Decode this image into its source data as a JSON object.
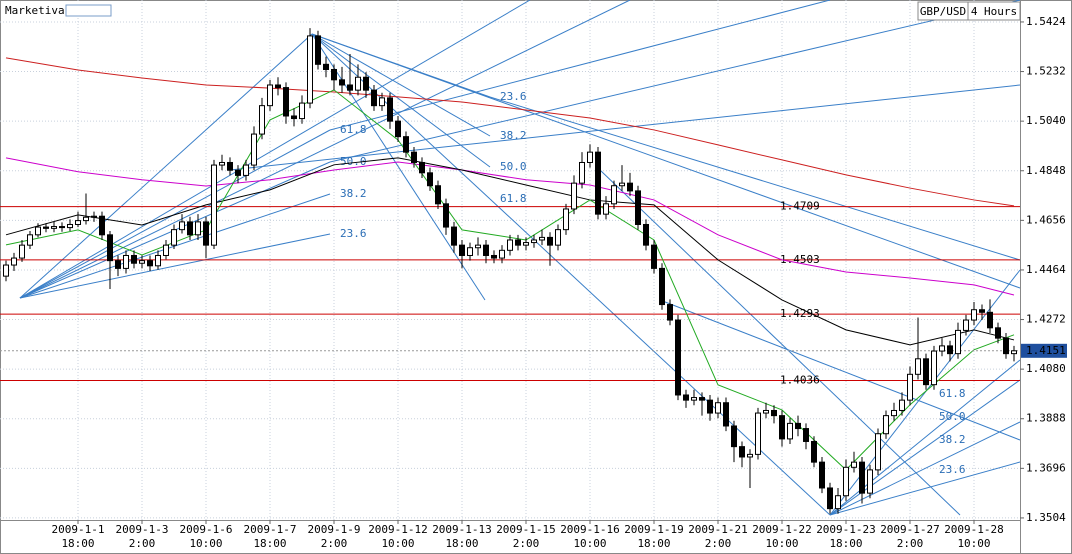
{
  "chart_data": {
    "type": "candlestick",
    "brand": "Marketiva",
    "symbol": "GBP/USD",
    "timeframe": "4 Hours",
    "ylim": [
      1.3496,
      1.5509
    ],
    "yticks": [
      1.5424,
      1.5232,
      {
        "value": 1.504,
        "label": "1.5040"
      },
      1.4848,
      1.4656,
      1.4464,
      1.4272,
      {
        "value": 1.408,
        "label": "1.4080"
      },
      1.3888,
      1.3696,
      1.3504
    ],
    "grid": true,
    "categories": [
      null,
      null,
      null,
      null,
      null,
      null,
      null,
      null,
      null,
      [
        "2009-1-1",
        "18:00"
      ],
      null,
      null,
      null,
      null,
      null,
      null,
      null,
      [
        "2009-1-3",
        "2:00"
      ],
      null,
      null,
      null,
      null,
      null,
      null,
      null,
      [
        "2009-1-6",
        "10:00"
      ],
      null,
      null,
      null,
      null,
      null,
      null,
      null,
      [
        "2009-1-7",
        "18:00"
      ],
      null,
      null,
      null,
      null,
      null,
      null,
      null,
      [
        "2009-1-9",
        "2:00"
      ],
      null,
      null,
      null,
      null,
      null,
      null,
      null,
      [
        "2009-1-12",
        "10:00"
      ],
      null,
      null,
      null,
      null,
      null,
      null,
      null,
      [
        "2009-1-13",
        "18:00"
      ],
      null,
      null,
      null,
      null,
      null,
      null,
      null,
      [
        "2009-1-15",
        "2:00"
      ],
      null,
      null,
      null,
      null,
      null,
      null,
      null,
      [
        "2009-1-16",
        "10:00"
      ],
      null,
      null,
      null,
      null,
      null,
      null,
      null,
      [
        "2009-1-19",
        "18:00"
      ],
      null,
      null,
      null,
      null,
      null,
      null,
      null,
      [
        "2009-1-21",
        "2:00"
      ],
      null,
      null,
      null,
      null,
      null,
      null,
      null,
      [
        "2009-1-22",
        "10:00"
      ],
      null,
      null,
      null,
      null,
      null,
      null,
      null,
      [
        "2009-1-23",
        "18:00"
      ],
      null,
      null,
      null,
      null,
      null,
      null,
      null,
      [
        "2009-1-27",
        "2:00"
      ],
      null,
      null,
      null,
      null,
      null,
      null,
      null,
      [
        "2009-1-28",
        "10:00"
      ],
      null,
      null,
      null,
      null,
      null
    ],
    "open": [
      1.444,
      1.4483,
      1.451,
      1.456,
      1.46,
      1.463,
      1.4625,
      1.4632,
      1.4628,
      1.464,
      1.4655,
      1.4668,
      1.4672,
      1.46,
      1.45,
      1.447,
      1.452,
      1.449,
      1.45,
      1.448,
      1.452,
      1.456,
      1.462,
      1.465,
      1.46,
      1.465,
      1.456,
      1.487,
      1.488,
      1.485,
      1.483,
      1.487,
      1.499,
      1.51,
      1.518,
      1.517,
      1.506,
      1.505,
      1.511,
      1.537,
      1.526,
      1.524,
      1.52,
      1.518,
      1.516,
      1.521,
      1.516,
      1.51,
      1.513,
      1.504,
      1.498,
      1.492,
      1.488,
      1.484,
      1.479,
      1.472,
      1.463,
      1.456,
      1.452,
      1.455,
      1.456,
      1.452,
      1.451,
      1.454,
      1.458,
      1.456,
      1.457,
      1.458,
      1.459,
      1.456,
      1.462,
      1.47,
      1.48,
      1.488,
      1.492,
      1.468,
      1.472,
      1.479,
      1.48,
      1.477,
      1.464,
      1.456,
      1.447,
      1.433,
      1.427,
      1.398,
      1.396,
      1.397,
      1.396,
      1.391,
      1.395,
      1.386,
      1.378,
      1.374,
      1.375,
      1.391,
      1.392,
      1.39,
      1.381,
      1.387,
      1.385,
      1.38,
      1.372,
      1.362,
      1.354,
      1.359,
      1.37,
      1.372,
      1.36,
      1.369,
      1.383,
      1.39,
      1.392,
      1.396,
      1.406,
      1.412,
      1.402,
      1.415,
      1.417,
      1.414,
      1.423,
      1.427,
      1.431,
      1.43,
      1.424,
      1.42,
      1.414
    ],
    "high": [
      1.45,
      1.453,
      1.458,
      1.4615,
      1.4645,
      1.4645,
      1.465,
      1.4648,
      1.466,
      1.469,
      1.476,
      1.469,
      1.469,
      1.4615,
      1.452,
      1.454,
      1.454,
      1.452,
      1.452,
      1.454,
      1.458,
      1.464,
      1.468,
      1.467,
      1.468,
      1.467,
      1.489,
      1.491,
      1.49,
      1.487,
      1.489,
      1.502,
      1.513,
      1.52,
      1.521,
      1.519,
      1.509,
      1.514,
      1.54,
      1.539,
      1.529,
      1.526,
      1.525,
      1.53,
      1.526,
      1.523,
      1.518,
      1.515,
      1.515,
      1.506,
      1.5,
      1.494,
      1.49,
      1.486,
      1.481,
      1.474,
      1.465,
      1.458,
      1.457,
      1.459,
      1.458,
      1.454,
      1.456,
      1.46,
      1.46,
      1.459,
      1.46,
      1.462,
      1.461,
      1.464,
      1.472,
      1.483,
      1.492,
      1.495,
      1.494,
      1.475,
      1.481,
      1.487,
      1.484,
      1.479,
      1.466,
      1.458,
      1.449,
      1.435,
      1.429,
      1.4,
      1.4,
      1.399,
      1.398,
      1.397,
      1.397,
      1.388,
      1.38,
      1.377,
      1.393,
      1.395,
      1.394,
      1.392,
      1.389,
      1.39,
      1.387,
      1.382,
      1.374,
      1.364,
      1.362,
      1.373,
      1.376,
      1.374,
      1.371,
      1.385,
      1.392,
      1.395,
      1.399,
      1.409,
      1.428,
      1.414,
      1.417,
      1.42,
      1.419,
      1.426,
      1.429,
      1.434,
      1.433,
      1.435,
      1.426,
      1.422,
      1.417
    ],
    "low": [
      1.442,
      1.446,
      1.4495,
      1.4545,
      1.459,
      1.461,
      1.461,
      1.4612,
      1.4615,
      1.463,
      1.464,
      1.465,
      1.458,
      1.439,
      1.444,
      1.445,
      1.447,
      1.447,
      1.446,
      1.4465,
      1.4505,
      1.4545,
      1.4605,
      1.458,
      1.458,
      1.451,
      1.4545,
      1.485,
      1.483,
      1.48,
      1.481,
      1.485,
      1.497,
      1.508,
      1.514,
      1.503,
      1.502,
      1.503,
      1.509,
      1.524,
      1.521,
      1.516,
      1.515,
      1.514,
      1.514,
      1.513,
      1.508,
      1.508,
      1.501,
      1.496,
      1.49,
      1.486,
      1.482,
      1.477,
      1.47,
      1.46,
      1.453,
      1.447,
      1.45,
      1.452,
      1.449,
      1.449,
      1.449,
      1.452,
      1.454,
      1.454,
      1.455,
      1.456,
      1.448,
      1.454,
      1.46,
      1.468,
      1.478,
      1.486,
      1.466,
      1.466,
      1.47,
      1.477,
      1.475,
      1.462,
      1.454,
      1.445,
      1.431,
      1.425,
      1.396,
      1.393,
      1.394,
      1.39,
      1.388,
      1.389,
      1.384,
      1.372,
      1.37,
      1.362,
      1.373,
      1.389,
      1.387,
      1.378,
      1.379,
      1.382,
      1.377,
      1.37,
      1.36,
      1.352,
      1.352,
      1.357,
      1.368,
      1.356,
      1.358,
      1.367,
      1.381,
      1.388,
      1.39,
      1.394,
      1.404,
      1.4,
      1.4,
      1.413,
      1.411,
      1.412,
      1.421,
      1.425,
      1.427,
      1.422,
      1.418,
      1.412,
      1.411
    ],
    "close": [
      1.4483,
      1.451,
      1.456,
      1.46,
      1.463,
      1.4625,
      1.4632,
      1.4628,
      1.464,
      1.4655,
      1.4668,
      1.4672,
      1.46,
      1.45,
      1.447,
      1.452,
      1.449,
      1.45,
      1.448,
      1.452,
      1.456,
      1.462,
      1.465,
      1.46,
      1.465,
      1.456,
      1.487,
      1.488,
      1.485,
      1.483,
      1.487,
      1.499,
      1.51,
      1.518,
      1.517,
      1.506,
      1.505,
      1.511,
      1.537,
      1.526,
      1.524,
      1.52,
      1.518,
      1.516,
      1.521,
      1.516,
      1.51,
      1.513,
      1.504,
      1.498,
      1.492,
      1.488,
      1.484,
      1.479,
      1.472,
      1.463,
      1.456,
      1.452,
      1.455,
      1.456,
      1.452,
      1.451,
      1.454,
      1.458,
      1.456,
      1.457,
      1.458,
      1.459,
      1.456,
      1.462,
      1.47,
      1.48,
      1.488,
      1.492,
      1.468,
      1.472,
      1.479,
      1.48,
      1.477,
      1.464,
      1.456,
      1.447,
      1.433,
      1.427,
      1.398,
      1.396,
      1.397,
      1.396,
      1.391,
      1.395,
      1.386,
      1.378,
      1.374,
      1.375,
      1.391,
      1.392,
      1.39,
      1.381,
      1.387,
      1.385,
      1.38,
      1.372,
      1.362,
      1.354,
      1.359,
      1.37,
      1.372,
      1.36,
      1.369,
      1.383,
      1.39,
      1.392,
      1.396,
      1.406,
      1.412,
      1.402,
      1.415,
      1.417,
      1.414,
      1.423,
      1.427,
      1.431,
      1.43,
      1.424,
      1.42,
      1.414,
      1.4151
    ],
    "up_color": "#ffffff",
    "down_color": "#000000",
    "indicators": [
      {
        "color": "#cc2020",
        "x": [
          0,
          9,
          17,
          25,
          33,
          41,
          49,
          57,
          65,
          73,
          81,
          89,
          97,
          105,
          113,
          121,
          126
        ],
        "values": [
          1.5285,
          1.5238,
          1.5207,
          1.518,
          1.5168,
          1.5153,
          1.5134,
          1.5114,
          1.5083,
          1.5052,
          1.5006,
          1.4948,
          1.489,
          1.4832,
          1.4781,
          1.4735,
          1.4712
        ]
      },
      {
        "color": "#cc00cc",
        "x": [
          0,
          9,
          17,
          25,
          33,
          41,
          49,
          57,
          65,
          73,
          81,
          89,
          97,
          105,
          113,
          121,
          126
        ],
        "values": [
          1.4898,
          1.4844,
          1.4813,
          1.4789,
          1.4813,
          1.4851,
          1.4882,
          1.4851,
          1.4813,
          1.4793,
          1.4735,
          1.46,
          1.4503,
          1.4456,
          1.4433,
          1.4406,
          1.4367
        ]
      },
      {
        "color": "#000000",
        "x": [
          0,
          9,
          17,
          25,
          33,
          41,
          49,
          57,
          65,
          73,
          81,
          89,
          97,
          105,
          113,
          121,
          126
        ],
        "values": [
          1.46,
          1.4677,
          1.4638,
          1.4716,
          1.4774,
          1.4871,
          1.4898,
          1.4851,
          1.4793,
          1.4735,
          1.4716,
          1.4503,
          1.4348,
          1.4232,
          1.4174,
          1.4232,
          1.4193
        ]
      },
      {
        "color": "#22aa22",
        "x": [
          0,
          9,
          17,
          25,
          33,
          41,
          49,
          57,
          65,
          73,
          81,
          89,
          97,
          105,
          113,
          121,
          126
        ],
        "values": [
          1.4561,
          1.4619,
          1.4522,
          1.4619,
          1.5045,
          1.5161,
          1.4967,
          1.4619,
          1.458,
          1.4735,
          1.458,
          1.4019,
          1.3922,
          1.369,
          1.3942,
          1.4155,
          1.4213
        ]
      }
    ],
    "levels": [
      1.4709,
      1.4503,
      1.4293,
      1.4036
    ],
    "level_color": "#cc0000",
    "last_price": 1.4151,
    "fib_levels": [
      "61.8",
      "50.0",
      "38.2",
      "23.6"
    ]
  }
}
